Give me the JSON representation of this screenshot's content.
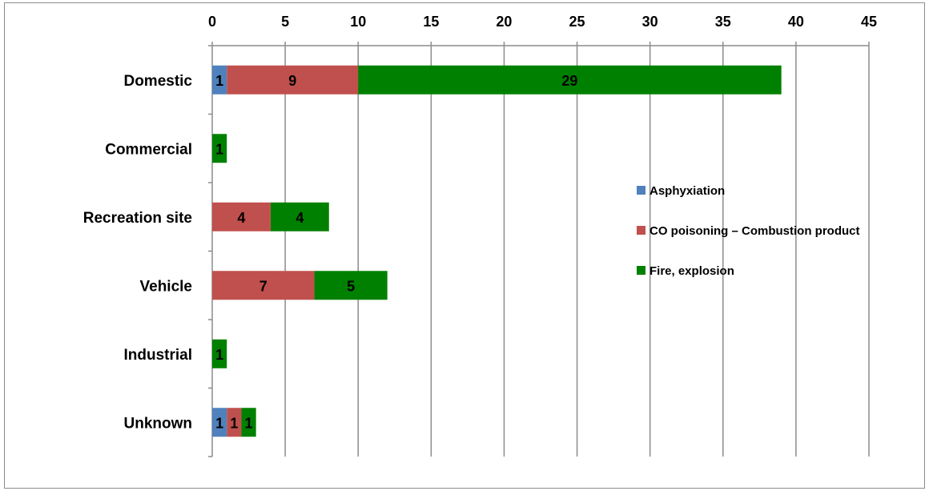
{
  "chart_data": {
    "type": "bar",
    "orientation": "horizontal",
    "stacked": true,
    "categories": [
      "Domestic",
      "Commercial",
      "Recreation site",
      "Vehicle",
      "Industrial",
      "Unknown"
    ],
    "series": [
      {
        "name": "Asphyxiation",
        "color": "#4f81bd",
        "values": [
          1,
          0,
          0,
          0,
          0,
          1
        ]
      },
      {
        "name": "CO poisoning – Combustion product",
        "color": "#c0504d",
        "values": [
          9,
          0,
          4,
          7,
          0,
          1
        ]
      },
      {
        "name": "Fire, explosion",
        "color": "#008000",
        "values": [
          29,
          1,
          4,
          5,
          1,
          1
        ]
      }
    ],
    "xlim": [
      0,
      45
    ],
    "xticks": [
      "0",
      "5",
      "10",
      "15",
      "20",
      "25",
      "30",
      "35",
      "40",
      "45"
    ],
    "x_axis_position": "top",
    "grid": true,
    "legend_position": "right",
    "data_labels": true
  }
}
